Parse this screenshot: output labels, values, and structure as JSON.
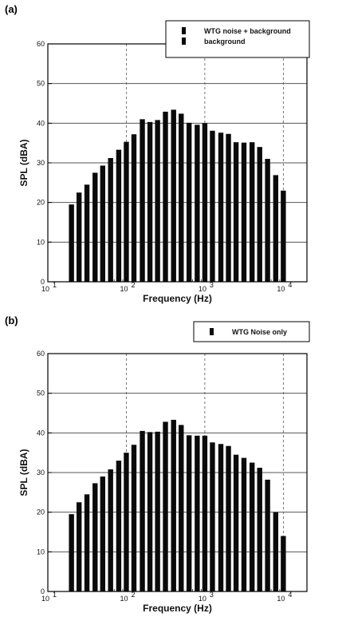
{
  "chart_data": [
    {
      "panel": "(a)",
      "type": "bar",
      "xlabel": "Frequency (Hz)",
      "ylabel": "SPL (dBA)",
      "x_scale": "log",
      "xlim": [
        10,
        20000
      ],
      "ylim": [
        0,
        60
      ],
      "y_ticks": [
        0,
        10,
        20,
        30,
        40,
        50,
        60
      ],
      "x_ticks": [
        10,
        100,
        1000,
        10000
      ],
      "x_tick_labels": [
        "10",
        "10",
        "10",
        "10"
      ],
      "x_tick_exponents": [
        "1",
        "2",
        "3",
        "4"
      ],
      "grid": true,
      "legend_position": "top-right",
      "legend": [
        "WTG noise + background",
        "background"
      ],
      "categories": [
        20,
        25,
        31.5,
        40,
        50,
        63,
        80,
        100,
        125,
        160,
        200,
        250,
        315,
        400,
        500,
        630,
        800,
        1000,
        1250,
        1600,
        2000,
        2500,
        3150,
        4000,
        5000,
        6300,
        8000,
        10000
      ],
      "series": [
        {
          "name": "WTG noise + background",
          "values": [
            19.5,
            22.5,
            24.5,
            27.5,
            29.3,
            31.2,
            33.3,
            35.3,
            37.2,
            41.0,
            40.3,
            40.8,
            42.9,
            43.4,
            42.4,
            40.1,
            39.6,
            40.0,
            38.1,
            37.6,
            37.3,
            35.2,
            35.1,
            35.2,
            34.0,
            31.0,
            26.9,
            23.0
          ]
        },
        {
          "name": "background",
          "values": [
            3.0,
            3.0,
            3.0,
            3.0,
            3.0,
            3.0,
            3.0,
            3.0,
            3.0,
            3.0,
            3.0,
            3.0,
            3.0,
            3.0,
            3.0,
            3.0,
            3.0,
            3.0,
            3.0,
            3.0,
            3.0,
            3.0,
            3.0,
            3.0,
            3.0,
            3.0,
            3.0,
            3.0
          ]
        }
      ]
    },
    {
      "panel": "(b)",
      "type": "bar",
      "xlabel": "Frequency (Hz)",
      "ylabel": "SPL (dBA)",
      "x_scale": "log",
      "xlim": [
        10,
        20000
      ],
      "ylim": [
        0,
        60
      ],
      "y_ticks": [
        0,
        10,
        20,
        30,
        40,
        50,
        60
      ],
      "x_ticks": [
        10,
        100,
        1000,
        10000
      ],
      "x_tick_labels": [
        "10",
        "10",
        "10",
        "10"
      ],
      "x_tick_exponents": [
        "1",
        "2",
        "3",
        "4"
      ],
      "grid": true,
      "legend_position": "top-right",
      "legend": [
        "WTG Noise only"
      ],
      "categories": [
        20,
        25,
        31.5,
        40,
        50,
        63,
        80,
        100,
        125,
        160,
        200,
        250,
        315,
        400,
        500,
        630,
        800,
        1000,
        1250,
        1600,
        2000,
        2500,
        3150,
        4000,
        5000,
        6300,
        8000,
        10000
      ],
      "series": [
        {
          "name": "WTG Noise only",
          "values": [
            19.5,
            22.5,
            24.5,
            27.3,
            29.0,
            30.8,
            33.0,
            35.0,
            37.0,
            40.5,
            40.2,
            40.3,
            42.8,
            43.3,
            42.0,
            39.4,
            39.3,
            39.3,
            37.6,
            37.2,
            36.7,
            34.5,
            33.7,
            32.5,
            31.2,
            28.2,
            20.0,
            14.0
          ]
        }
      ]
    }
  ],
  "colors": {
    "bar": "#0a0a0a",
    "grid": "#555555",
    "axis": "#000000"
  }
}
